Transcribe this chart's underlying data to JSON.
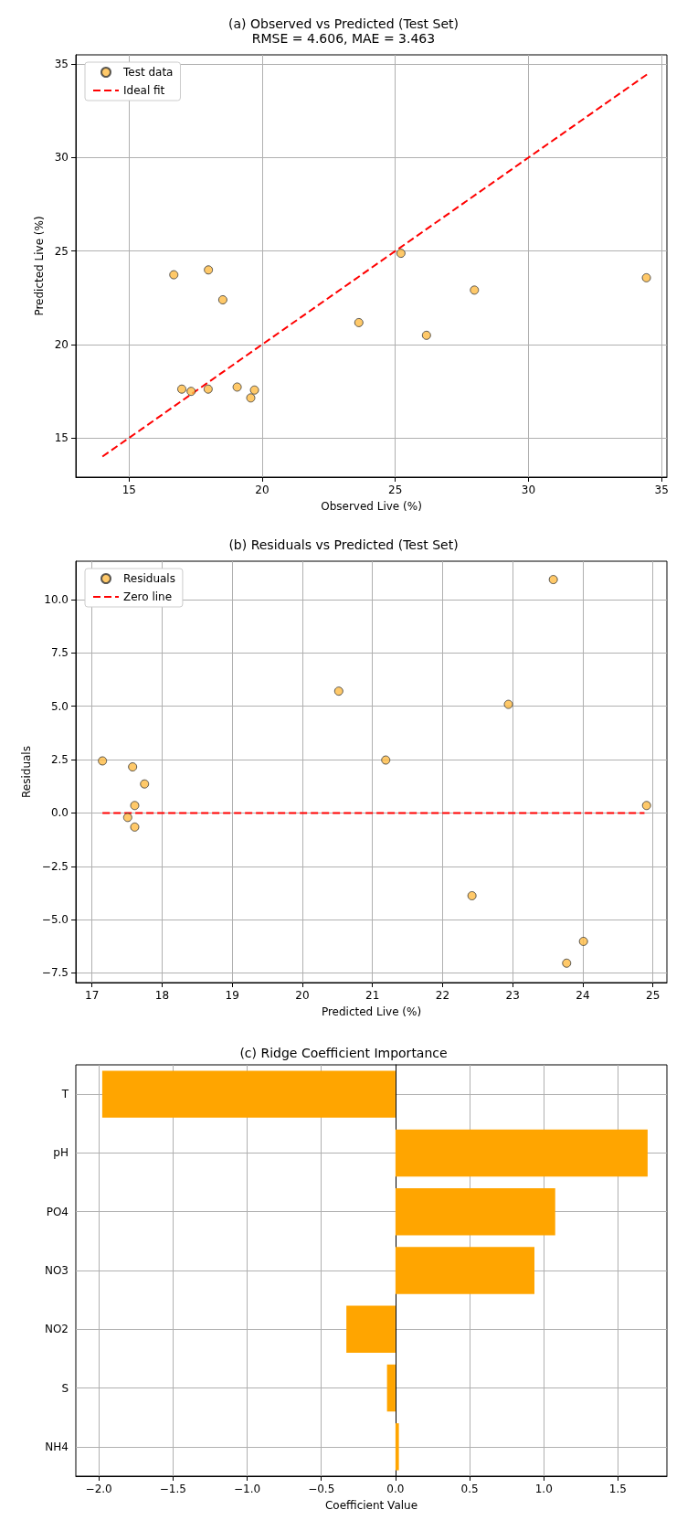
{
  "chart_data": [
    {
      "type": "scatter",
      "title": "(a) Observed vs Predicted (Test Set)",
      "subtitle": "RMSE = 4.606, MAE = 3.463",
      "xlabel": "Observed Live (%)",
      "ylabel": "Predicted Live (%)",
      "series": [
        {
          "name": "Test data",
          "type": "scatter",
          "color": "#ffbb44",
          "marker": "circle",
          "x": [
            16.68,
            17.98,
            18.52,
            25.21,
            23.63,
            26.17,
            27.97,
            34.43,
            16.98,
            17.33,
            17.97,
            19.06,
            19.57,
            19.71
          ],
          "values": [
            23.73,
            23.99,
            22.39,
            24.88,
            21.17,
            20.49,
            22.91,
            23.57,
            17.61,
            17.49,
            17.61,
            17.72,
            17.14,
            17.56
          ]
        },
        {
          "name": "Ideal fit",
          "type": "line",
          "color": "#ff0000",
          "line_style": "dashed",
          "marker": "none",
          "x": [
            14,
            34.45
          ],
          "values": [
            14,
            34.45
          ]
        }
      ],
      "xlim": [
        13,
        35.2
      ],
      "xticks": [
        15,
        20,
        25,
        30,
        35
      ],
      "ylim": [
        12.9,
        35.5
      ],
      "yticks": [
        15,
        20,
        25,
        30,
        35
      ],
      "grid": true,
      "legend": "top left"
    },
    {
      "type": "scatter",
      "title": "(b) Residuals vs Predicted (Test Set)",
      "xlabel": "Predicted Live (%)",
      "ylabel": "Residuals",
      "series": [
        {
          "name": "Residuals",
          "type": "scatter",
          "color": "#ffbb44",
          "marker": "circle",
          "x": [
            17.15,
            17.58,
            17.75,
            20.52,
            21.19,
            22.94,
            23.58,
            17.61,
            17.51,
            17.61,
            22.42,
            24.01,
            23.77,
            24.91
          ],
          "values": [
            2.44,
            2.16,
            1.36,
            5.71,
            2.48,
            5.09,
            10.94,
            0.35,
            -0.21,
            -0.66,
            -3.88,
            -6.02,
            -7.04,
            0.35
          ]
        },
        {
          "name": "Zero line",
          "type": "line",
          "color": "#ff0000",
          "line_style": "dashed",
          "marker": "none",
          "x": [
            17.15,
            24.88
          ],
          "values": [
            0,
            0
          ]
        }
      ],
      "xlim": [
        16.77,
        25.2
      ],
      "xticks": [
        17,
        18,
        19,
        20,
        21,
        22,
        23,
        24,
        25
      ],
      "ylim": [
        -7.95,
        11.8
      ],
      "yticks": [
        {
          "value": -7.5,
          "label": "−7.5"
        },
        {
          "value": -5,
          "label": "−5.0"
        },
        {
          "value": -2.5,
          "label": "−2.5"
        },
        {
          "value": 0,
          "label": "0.0"
        },
        {
          "value": 2.5,
          "label": "2.5"
        },
        {
          "value": 5,
          "label": "5.0"
        },
        {
          "value": 7.5,
          "label": "7.5"
        },
        {
          "value": 10,
          "label": "10.0"
        }
      ],
      "grid": true,
      "legend": "top left"
    },
    {
      "type": "bar",
      "orientation": "horizontal",
      "title": "(c) Ridge Coefficient Importance",
      "xlabel": "Coefficient Value",
      "categories": [
        "T",
        "pH",
        "PO4",
        "NO3",
        "NO2",
        "S",
        "NH4"
      ],
      "values": [
        -1.977,
        1.7,
        1.077,
        0.937,
        -0.331,
        -0.057,
        0.023
      ],
      "color": "#ffa500",
      "xlim": [
        -2.155,
        1.83
      ],
      "xticks": [
        {
          "value": -2,
          "label": "−2.0"
        },
        {
          "value": -1.5,
          "label": "−1.5"
        },
        {
          "value": -1,
          "label": "−1.0"
        },
        {
          "value": -0.5,
          "label": "−0.5"
        },
        {
          "value": 0,
          "label": "0.0"
        },
        {
          "value": 0.5,
          "label": "0.5"
        },
        {
          "value": 1,
          "label": "1.0"
        },
        {
          "value": 1.5,
          "label": "1.5"
        }
      ],
      "grid": true
    }
  ]
}
